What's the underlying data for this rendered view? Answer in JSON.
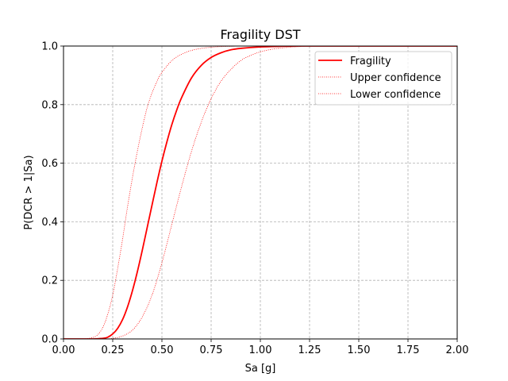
{
  "chart_data": {
    "type": "line",
    "title": "Fragility DST",
    "xlabel": "Sa [g]",
    "ylabel": "P(DCR > 1|Sa)",
    "xlim": [
      0,
      2
    ],
    "ylim": [
      0,
      1
    ],
    "xticks": [
      0,
      0.25,
      0.5,
      0.75,
      1.0,
      1.25,
      1.5,
      1.75,
      2.0
    ],
    "xtick_labels": [
      "0.00",
      "0.25",
      "0.50",
      "0.75",
      "1.00",
      "1.25",
      "1.50",
      "1.75",
      "2.00"
    ],
    "yticks": [
      0,
      0.2,
      0.4,
      0.6,
      0.8,
      1.0
    ],
    "ytick_labels": [
      "0.0",
      "0.2",
      "0.4",
      "0.6",
      "0.8",
      "1.0"
    ],
    "grid": true,
    "legend_position": "top-right",
    "series": [
      {
        "name": "Fragility",
        "style": "solid",
        "color": "#ff0000",
        "x": [
          0,
          0.1,
          0.15,
          0.2,
          0.225,
          0.25,
          0.275,
          0.3,
          0.325,
          0.35,
          0.375,
          0.4,
          0.425,
          0.45,
          0.475,
          0.5,
          0.525,
          0.55,
          0.575,
          0.6,
          0.65,
          0.7,
          0.75,
          0.8,
          0.85,
          0.9,
          1.0,
          1.1,
          1.2,
          1.3
        ],
        "y": [
          0,
          0,
          0,
          0.002,
          0.006,
          0.017,
          0.036,
          0.066,
          0.109,
          0.164,
          0.229,
          0.302,
          0.38,
          0.458,
          0.535,
          0.607,
          0.672,
          0.731,
          0.781,
          0.824,
          0.891,
          0.934,
          0.961,
          0.977,
          0.987,
          0.992,
          0.997,
          0.999,
          1.0,
          1.0
        ]
      },
      {
        "name": "Upper confidence",
        "style": "dotted",
        "color": "#ff0000",
        "x": [
          0,
          0.1,
          0.15,
          0.175,
          0.2,
          0.225,
          0.25,
          0.275,
          0.3,
          0.325,
          0.35,
          0.375,
          0.4,
          0.425,
          0.45,
          0.475,
          0.5,
          0.55,
          0.6,
          0.65,
          0.7,
          0.75,
          0.8,
          0.85,
          0.9,
          1.0,
          1.1
        ],
        "y": [
          0,
          0,
          0.005,
          0.015,
          0.04,
          0.085,
          0.15,
          0.24,
          0.34,
          0.45,
          0.55,
          0.64,
          0.72,
          0.79,
          0.84,
          0.88,
          0.91,
          0.95,
          0.972,
          0.985,
          0.992,
          0.996,
          0.998,
          0.999,
          1.0,
          1.0,
          1.0
        ]
      },
      {
        "name": "Lower confidence",
        "style": "dotted",
        "color": "#ff0000",
        "x": [
          0,
          0.2,
          0.25,
          0.3,
          0.35,
          0.4,
          0.45,
          0.5,
          0.55,
          0.6,
          0.65,
          0.7,
          0.75,
          0.8,
          0.85,
          0.9,
          0.95,
          1.0,
          1.05,
          1.1,
          1.15,
          1.2,
          1.3
        ],
        "y": [
          0,
          0,
          0.002,
          0.01,
          0.03,
          0.075,
          0.15,
          0.26,
          0.39,
          0.52,
          0.64,
          0.74,
          0.82,
          0.88,
          0.92,
          0.95,
          0.968,
          0.98,
          0.988,
          0.993,
          0.996,
          0.998,
          1.0
        ]
      }
    ]
  }
}
